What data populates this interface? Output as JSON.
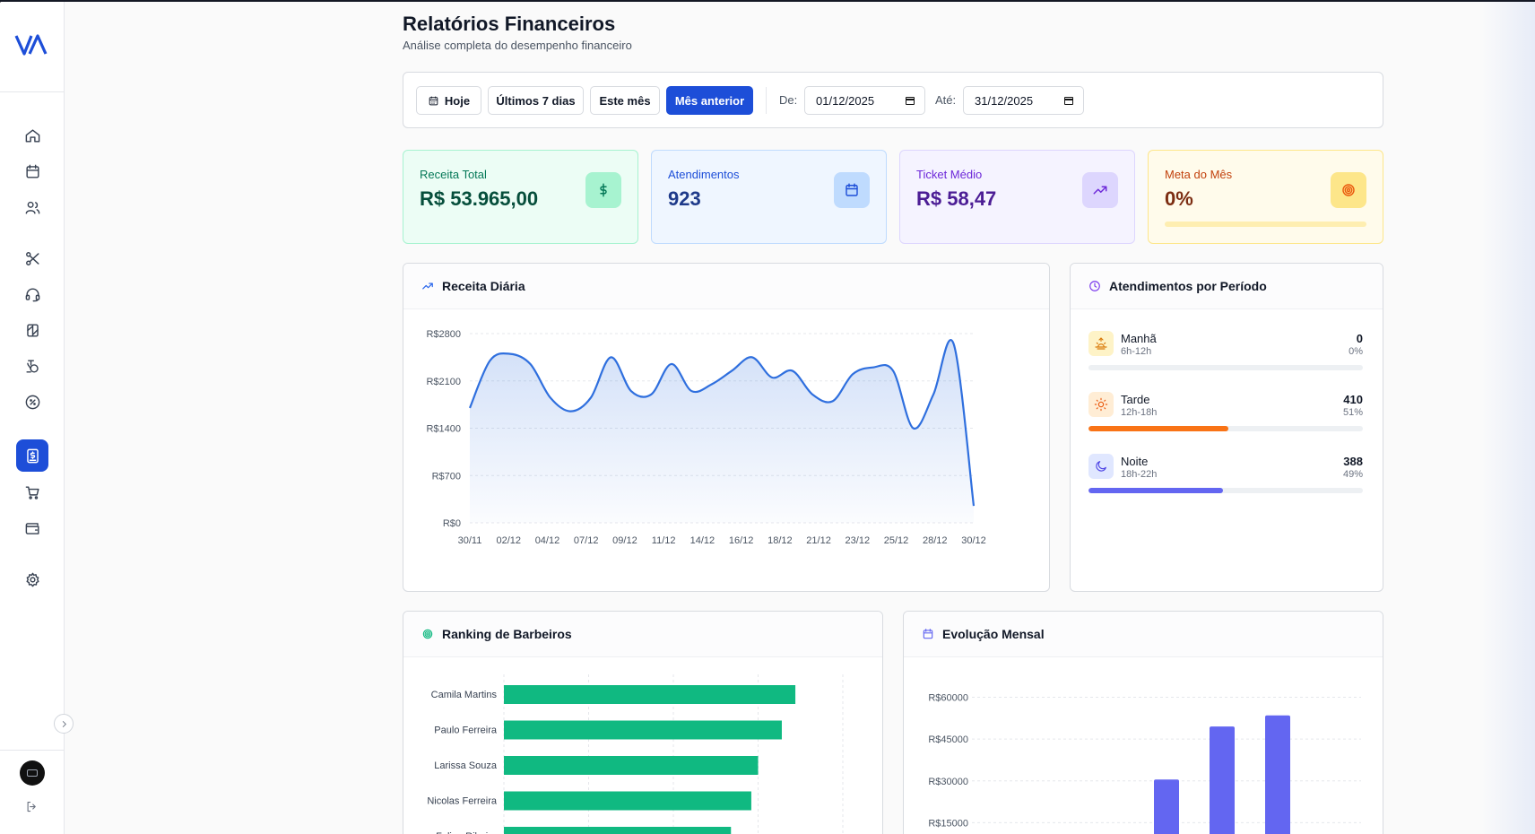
{
  "header": {
    "title": "Relatórios Financeiros",
    "subtitle": "Análise completa do desempenho financeiro"
  },
  "sidebar": {
    "items": [
      {
        "name": "home",
        "icon": "home-icon",
        "active": false
      },
      {
        "name": "calendar",
        "icon": "calendar-icon",
        "active": false
      },
      {
        "name": "clients",
        "icon": "users-icon",
        "active": false
      },
      {
        "name": "services",
        "icon": "scissors-icon",
        "active": false
      },
      {
        "name": "support",
        "icon": "headset-icon",
        "active": false
      },
      {
        "name": "products",
        "icon": "tag-icon",
        "active": false
      },
      {
        "name": "commissions",
        "icon": "coins-icon",
        "active": false
      },
      {
        "name": "discounts",
        "icon": "percent-icon",
        "active": false
      },
      {
        "name": "financial-reports",
        "icon": "dollar-document-icon",
        "active": true
      },
      {
        "name": "sales",
        "icon": "cart-icon",
        "active": false
      },
      {
        "name": "wallet",
        "icon": "wallet-icon",
        "active": false
      },
      {
        "name": "settings",
        "icon": "gear-icon",
        "active": false
      }
    ]
  },
  "filters": {
    "today": "Hoje",
    "last7": "Últimos 7 dias",
    "this_month": "Este mês",
    "last_month": "Mês anterior",
    "from_label": "De:",
    "from_value": "01/12/2025",
    "to_label": "Até:",
    "to_value": "31/12/2025"
  },
  "stats": {
    "revenue": {
      "label": "Receita Total",
      "value": "R$ 53.965,00",
      "color": "#047857",
      "icon": "dollar-icon"
    },
    "appointments": {
      "label": "Atendimentos",
      "value": "923",
      "color": "#1d4ed8",
      "icon": "calendar-icon"
    },
    "ticket": {
      "label": "Ticket Médio",
      "value": "R$ 58,47",
      "color": "#6d28d9",
      "icon": "trending-up-icon"
    },
    "goal": {
      "label": "Meta do Mês",
      "value": "0%",
      "color": "#c2410c",
      "progress": 0,
      "icon": "target-icon"
    }
  },
  "daily_revenue": {
    "title": "Receita Diária",
    "chart_data": {
      "type": "area",
      "ylim": [
        0,
        2800
      ],
      "yticks": [
        "R$2800",
        "R$2100",
        "R$1400",
        "R$700",
        "R$0"
      ],
      "ytick_values": [
        2800,
        2100,
        1400,
        700,
        0
      ],
      "xticks": [
        "30/11",
        "02/12",
        "04/12",
        "07/12",
        "09/12",
        "11/12",
        "14/12",
        "16/12",
        "18/12",
        "21/12",
        "23/12",
        "25/12",
        "28/12",
        "30/12"
      ],
      "values": [
        1700,
        2400,
        2500,
        2350,
        1850,
        1650,
        1850,
        2450,
        1950,
        1900,
        2350,
        1950,
        2050,
        2250,
        2450,
        2150,
        2250,
        1900,
        1800,
        2200,
        2300,
        2250,
        1400,
        1900,
        2650,
        250
      ],
      "color": "#2f6fde"
    }
  },
  "periods": {
    "title": "Atendimentos por Período",
    "items": [
      {
        "name": "Manhã",
        "range": "6h-12h",
        "count": "0",
        "pct": "0%",
        "fraction": 0,
        "color": "#f59e0b",
        "bg": "#fef3c7",
        "icon": "sunrise-icon"
      },
      {
        "name": "Tarde",
        "range": "12h-18h",
        "count": "410",
        "pct": "51%",
        "fraction": 0.51,
        "color": "#f97316",
        "bg": "#ffedd5",
        "icon": "sun-icon"
      },
      {
        "name": "Noite",
        "range": "18h-22h",
        "count": "388",
        "pct": "49%",
        "fraction": 0.49,
        "color": "#6366f1",
        "bg": "#e0e7ff",
        "icon": "moon-icon"
      }
    ]
  },
  "ranking": {
    "title": "Ranking de Barbeiros",
    "chart_data": {
      "type": "bar",
      "orientation": "horizontal",
      "categories": [
        "Camila Martins",
        "Paulo Ferreira",
        "Larissa Souza",
        "Nicolas Ferreira",
        "Felipe Ribeiro"
      ],
      "values": [
        0.86,
        0.82,
        0.75,
        0.73,
        0.67
      ],
      "color": "#10b981"
    }
  },
  "monthly": {
    "title": "Evolução Mensal",
    "chart_data": {
      "type": "bar",
      "yticks": [
        "R$60000",
        "R$45000",
        "R$30000",
        "R$15000"
      ],
      "ytick_values": [
        60000,
        45000,
        30000,
        15000
      ],
      "values": [
        0,
        0,
        0,
        30500,
        49500,
        53500,
        0
      ],
      "ylim": [
        0,
        65000
      ],
      "color": "#6366f1"
    }
  }
}
